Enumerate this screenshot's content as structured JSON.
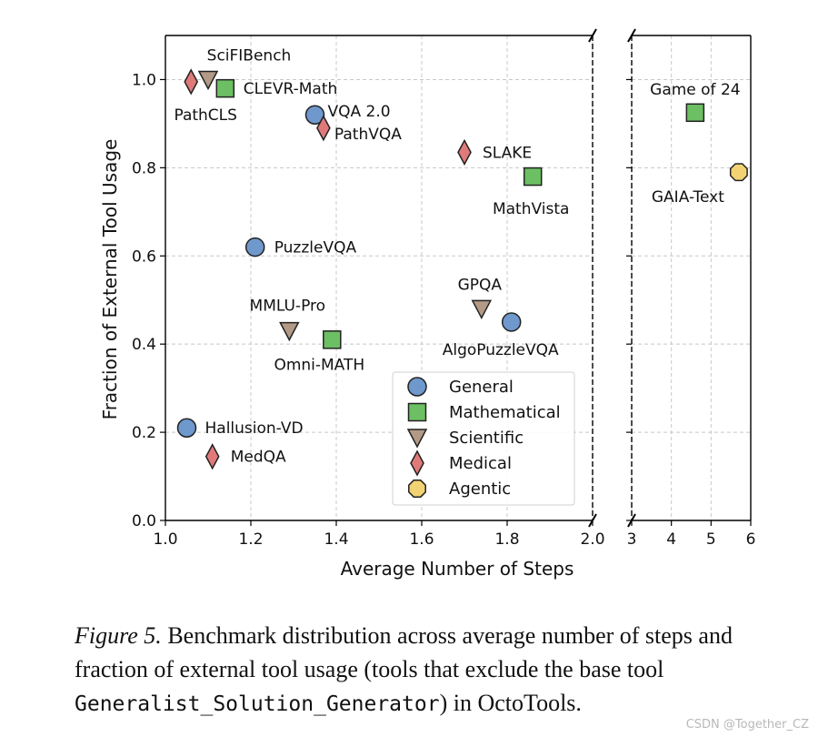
{
  "chart_data": {
    "type": "scatter",
    "title": "",
    "xlabel": "Average Number of Steps",
    "ylabel": "Fraction of External Tool Usage",
    "ylim": [
      0,
      1.1
    ],
    "grid": true,
    "legend_position": "lower-right",
    "panels": [
      {
        "name": "main",
        "xlim": [
          1.0,
          2.0
        ],
        "xticks": [
          "1.0",
          "1.2",
          "1.4",
          "1.6",
          "1.8",
          "2.0"
        ],
        "xtick_values": [
          1.0,
          1.2,
          1.4,
          1.6,
          1.8,
          2.0
        ]
      },
      {
        "name": "right",
        "xlim": [
          3,
          6
        ],
        "xticks": [
          "3",
          "4",
          "5",
          "6"
        ],
        "xtick_values": [
          3,
          4,
          5,
          6
        ]
      }
    ],
    "yticks": [
      "0.0",
      "0.2",
      "0.4",
      "0.6",
      "0.8",
      "1.0"
    ],
    "ytick_values": [
      0.0,
      0.2,
      0.4,
      0.6,
      0.8,
      1.0
    ],
    "series": [
      {
        "name": "General",
        "marker": "circle",
        "color": "#6f98cc"
      },
      {
        "name": "Mathematical",
        "marker": "square",
        "color": "#6cbf62"
      },
      {
        "name": "Scientific",
        "marker": "triangle-down",
        "color": "#b39a86"
      },
      {
        "name": "Medical",
        "marker": "diamond",
        "color": "#e07a7a"
      },
      {
        "name": "Agentic",
        "marker": "octagon",
        "color": "#f2d374"
      }
    ],
    "points": [
      {
        "label": "SciFIBench",
        "x": 1.1,
        "y": 1.0,
        "series": "Scientific",
        "panel": "main",
        "label_pos": "above"
      },
      {
        "label": "PathCLS",
        "x": 1.06,
        "y": 0.995,
        "series": "Medical",
        "panel": "main",
        "label_pos": "below"
      },
      {
        "label": "CLEVR-Math",
        "x": 1.14,
        "y": 0.98,
        "series": "Mathematical",
        "panel": "main",
        "label_pos": "right"
      },
      {
        "label": "VQA 2.0",
        "x": 1.35,
        "y": 0.92,
        "series": "General",
        "panel": "main",
        "label_pos": "right"
      },
      {
        "label": "PathVQA",
        "x": 1.37,
        "y": 0.89,
        "series": "Medical",
        "panel": "main",
        "label_pos": "right-low"
      },
      {
        "label": "SLAKE",
        "x": 1.7,
        "y": 0.835,
        "series": "Medical",
        "panel": "main",
        "label_pos": "right"
      },
      {
        "label": "MathVista",
        "x": 1.86,
        "y": 0.78,
        "series": "Mathematical",
        "panel": "main",
        "label_pos": "below"
      },
      {
        "label": "PuzzleVQA",
        "x": 1.21,
        "y": 0.62,
        "series": "General",
        "panel": "main",
        "label_pos": "right"
      },
      {
        "label": "GPQA",
        "x": 1.74,
        "y": 0.48,
        "series": "Scientific",
        "panel": "main",
        "label_pos": "above"
      },
      {
        "label": "AlgoPuzzleVQA",
        "x": 1.81,
        "y": 0.45,
        "series": "General",
        "panel": "main",
        "label_pos": "below"
      },
      {
        "label": "MMLU-Pro",
        "x": 1.29,
        "y": 0.43,
        "series": "Scientific",
        "panel": "main",
        "label_pos": "above"
      },
      {
        "label": "Omni-MATH",
        "x": 1.39,
        "y": 0.41,
        "series": "Mathematical",
        "panel": "main",
        "label_pos": "below"
      },
      {
        "label": "Hallusion-VD",
        "x": 1.05,
        "y": 0.21,
        "series": "General",
        "panel": "main",
        "label_pos": "right"
      },
      {
        "label": "MedQA",
        "x": 1.11,
        "y": 0.145,
        "series": "Medical",
        "panel": "main",
        "label_pos": "right"
      },
      {
        "label": "Game of 24",
        "x": 4.6,
        "y": 0.925,
        "series": "Mathematical",
        "panel": "right",
        "label_pos": "above"
      },
      {
        "label": "GAIA-Text",
        "x": 5.7,
        "y": 0.79,
        "series": "Agentic",
        "panel": "right",
        "label_pos": "below-left"
      }
    ]
  },
  "caption": {
    "figure_label": "Figure 5.",
    "text_part1": " Benchmark distribution across average number of steps and fraction of external tool usage (tools that exclude the base tool ",
    "code_text": "Generalist_Solution_Generator",
    "text_part2": ") in OctoTools."
  },
  "watermark": "CSDN @Together_CZ"
}
